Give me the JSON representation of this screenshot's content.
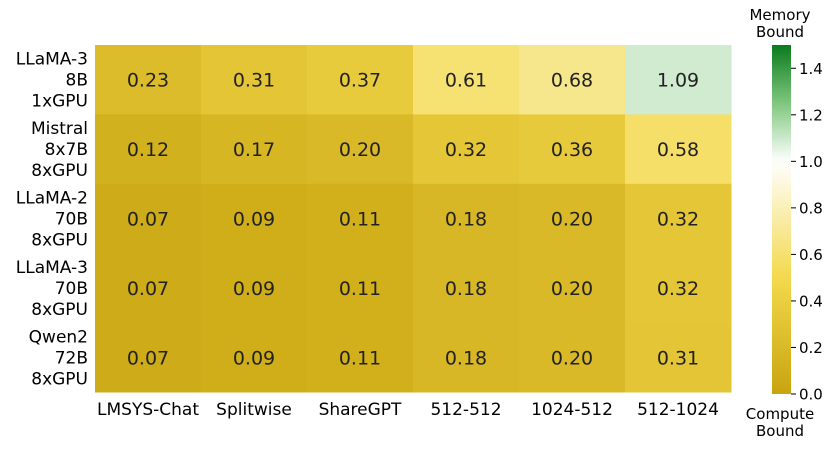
{
  "chart_data": {
    "type": "heatmap",
    "title": "",
    "xlabel": "",
    "ylabel": "",
    "columns": [
      "LMSYS-Chat",
      "Splitwise",
      "ShareGPT",
      "512-512",
      "1024-512",
      "512-1024"
    ],
    "rows": [
      [
        "LLaMA-3",
        "8B",
        "1xGPU"
      ],
      [
        "Mistral",
        "8x7B",
        "8xGPU"
      ],
      [
        "LLaMA-2",
        "70B",
        "8xGPU"
      ],
      [
        "LLaMA-3",
        "70B",
        "8xGPU"
      ],
      [
        "Qwen2",
        "72B",
        "8xGPU"
      ]
    ],
    "values": [
      [
        0.23,
        0.31,
        0.37,
        0.61,
        0.68,
        1.09
      ],
      [
        0.12,
        0.17,
        0.2,
        0.32,
        0.36,
        0.58
      ],
      [
        0.07,
        0.09,
        0.11,
        0.18,
        0.2,
        0.32
      ],
      [
        0.07,
        0.09,
        0.11,
        0.18,
        0.2,
        0.32
      ],
      [
        0.07,
        0.09,
        0.11,
        0.18,
        0.2,
        0.31
      ]
    ],
    "value_labels": [
      [
        "0.23",
        "0.31",
        "0.37",
        "0.61",
        "0.68",
        "1.09"
      ],
      [
        "0.12",
        "0.17",
        "0.20",
        "0.32",
        "0.36",
        "0.58"
      ],
      [
        "0.07",
        "0.09",
        "0.11",
        "0.18",
        "0.20",
        "0.32"
      ],
      [
        "0.07",
        "0.09",
        "0.11",
        "0.18",
        "0.20",
        "0.32"
      ],
      [
        "0.07",
        "0.09",
        "0.11",
        "0.18",
        "0.20",
        "0.31"
      ]
    ],
    "colorbar": {
      "range": [
        0.0,
        1.5
      ],
      "ticks": [
        0.0,
        0.2,
        0.4,
        0.6,
        0.8,
        1.0,
        1.2,
        1.4
      ],
      "tick_labels": [
        "0.0",
        "0.2",
        "0.4",
        "0.6",
        "0.8",
        "1.0",
        "1.2",
        "1.4"
      ],
      "center": 1.0,
      "top_label": [
        "Memory",
        "Bound"
      ],
      "bottom_label": [
        "Compute",
        "Bound"
      ],
      "colors": {
        "low": "#c8a40f",
        "mid_low": "#f3d94c",
        "center": "#ffffff",
        "mid_high": "#7fc77e",
        "high": "#0b7a1d"
      }
    }
  }
}
